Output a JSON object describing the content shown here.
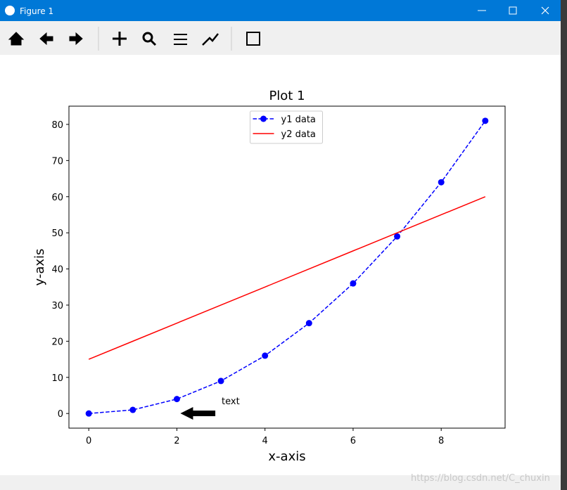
{
  "window": {
    "title": "Figure 1"
  },
  "watermark": "https://blog.csdn.net/C_chuxin",
  "chart_data": {
    "type": "line",
    "title": "Plot 1",
    "x_label": "x-axis",
    "y_label": "y-axis",
    "x": [
      0,
      1,
      2,
      3,
      4,
      5,
      6,
      7,
      8,
      9
    ],
    "series": [
      {
        "name": "y1 data",
        "color": "#0000ff",
        "linestyle": "dashed",
        "marker": "circle",
        "values": [
          0,
          1,
          4,
          9,
          16,
          25,
          36,
          49,
          64,
          81
        ]
      },
      {
        "name": "y2 data",
        "color": "#ff0000",
        "linestyle": "solid",
        "values": [
          15,
          20,
          25,
          30,
          35,
          40,
          45,
          50,
          55,
          60
        ]
      }
    ],
    "xlim": [
      -0.45,
      9.45
    ],
    "ylim": [
      -4.05,
      85.05
    ],
    "xticks": [
      0,
      2,
      4,
      6,
      8
    ],
    "yticks": [
      0,
      10,
      20,
      30,
      40,
      50,
      60,
      70,
      80
    ],
    "grid": false,
    "legend": "upper center",
    "annotation": {
      "text": "text",
      "xy": [
        2,
        1
      ],
      "xytext": [
        3,
        1
      ]
    }
  }
}
